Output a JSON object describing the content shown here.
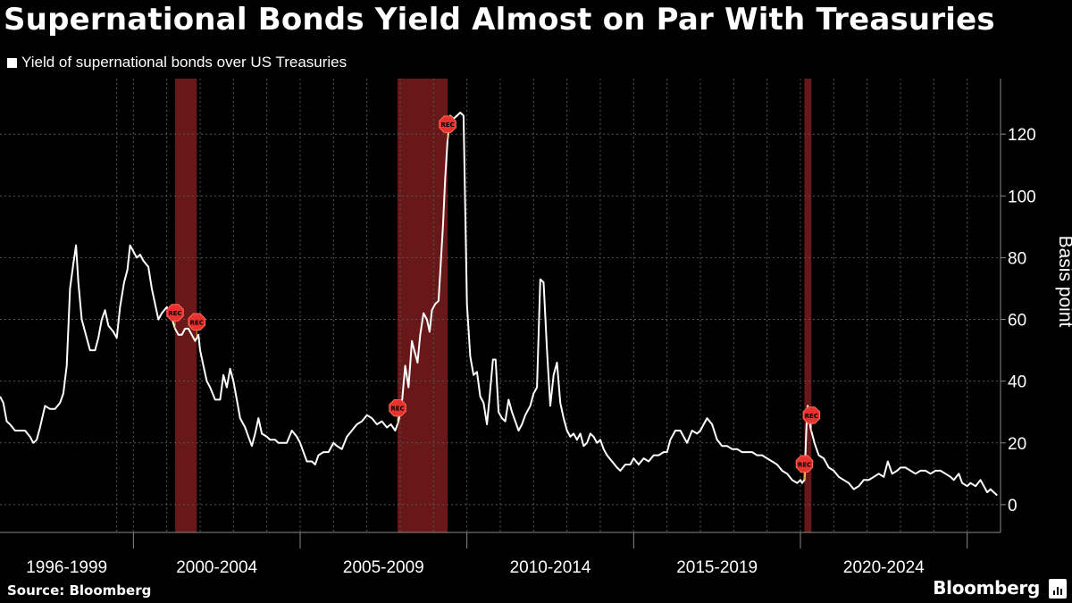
{
  "title": "Supernational Bonds Yield Almost on Par With Treasuries",
  "legend_label": "Yield of supernational bonds over US Treasuries",
  "source": "Source: Bloomberg",
  "brand": "Bloomberg",
  "colors": {
    "background": "#000000",
    "line": "#ffffff",
    "recession_band": "#7a1c1c",
    "recession_marker": "#e8322e",
    "grid": "#555555"
  },
  "chart_data": {
    "type": "line",
    "title": "Supernational Bonds Yield Almost on Par With Treasuries",
    "xlabel": "",
    "ylabel": "Basis point",
    "ylim": [
      -9,
      138
    ],
    "xlim": [
      1996.0,
      2026.0
    ],
    "yticks": [
      0,
      20,
      40,
      60,
      80,
      100,
      120
    ],
    "xtick_labels": [
      {
        "label": "1996-1999",
        "start": 1996.0,
        "end": 2000.0
      },
      {
        "label": "2000-2004",
        "start": 2000.0,
        "end": 2005.0
      },
      {
        "label": "2005-2009",
        "start": 2005.0,
        "end": 2010.0
      },
      {
        "label": "2010-2014",
        "start": 2010.0,
        "end": 2015.0
      },
      {
        "label": "2015-2019",
        "start": 2015.0,
        "end": 2020.0
      },
      {
        "label": "2020-2024",
        "start": 2020.0,
        "end": 2025.0
      }
    ],
    "vertical_gridlines": [
      1999.5,
      2000.0,
      2001.0,
      2002.0,
      2003.0,
      2004.0,
      2005.0,
      2006.0,
      2007.0,
      2008.0,
      2009.0,
      2010.0,
      2011.0,
      2012.0,
      2013.0,
      2014.0,
      2015.0,
      2016.0,
      2017.0,
      2018.0,
      2019.0,
      2020.0,
      2021.0,
      2022.0,
      2023.0,
      2024.0,
      2025.0
    ],
    "recessions": [
      {
        "start": 2001.25,
        "end": 2001.9,
        "label": "REC"
      },
      {
        "start": 2007.92,
        "end": 2009.42,
        "label": "REC"
      },
      {
        "start": 2020.12,
        "end": 2020.33,
        "label": "REC"
      }
    ],
    "series": [
      {
        "name": "",
        "points": [
          [
            1996.0,
            35
          ],
          [
            1996.1,
            33
          ],
          [
            1996.2,
            27
          ],
          [
            1996.3,
            26
          ],
          [
            1996.45,
            24
          ],
          [
            1996.6,
            24
          ],
          [
            1996.75,
            24
          ],
          [
            1996.9,
            22
          ],
          [
            1997.0,
            20
          ],
          [
            1997.1,
            21
          ],
          [
            1997.2,
            25
          ],
          [
            1997.35,
            32
          ],
          [
            1997.5,
            31
          ],
          [
            1997.65,
            31
          ],
          [
            1997.8,
            33
          ],
          [
            1997.9,
            36
          ],
          [
            1998.0,
            45
          ],
          [
            1998.1,
            70
          ],
          [
            1998.2,
            78
          ],
          [
            1998.28,
            84
          ],
          [
            1998.35,
            72
          ],
          [
            1998.45,
            60
          ],
          [
            1998.55,
            56
          ],
          [
            1998.7,
            50
          ],
          [
            1998.85,
            50
          ],
          [
            1998.95,
            54
          ],
          [
            1999.05,
            60
          ],
          [
            1999.15,
            63
          ],
          [
            1999.25,
            58
          ],
          [
            1999.4,
            56
          ],
          [
            1999.5,
            54
          ],
          [
            1999.6,
            64
          ],
          [
            1999.72,
            72
          ],
          [
            1999.82,
            76
          ],
          [
            1999.9,
            84
          ],
          [
            2000.0,
            82
          ],
          [
            2000.1,
            80
          ],
          [
            2000.2,
            81
          ],
          [
            2000.3,
            79
          ],
          [
            2000.45,
            77
          ],
          [
            2000.55,
            70
          ],
          [
            2000.65,
            65
          ],
          [
            2000.75,
            60
          ],
          [
            2000.85,
            62
          ],
          [
            2001.0,
            64
          ],
          [
            2001.1,
            62
          ],
          [
            2001.25,
            57
          ],
          [
            2001.35,
            55
          ],
          [
            2001.45,
            55
          ],
          [
            2001.55,
            57
          ],
          [
            2001.65,
            57
          ],
          [
            2001.75,
            55
          ],
          [
            2001.85,
            53
          ],
          [
            2001.95,
            55
          ],
          [
            2002.0,
            50
          ],
          [
            2002.1,
            45
          ],
          [
            2002.2,
            40
          ],
          [
            2002.3,
            38
          ],
          [
            2002.45,
            34
          ],
          [
            2002.6,
            34
          ],
          [
            2002.7,
            42
          ],
          [
            2002.8,
            38
          ],
          [
            2002.9,
            44
          ],
          [
            2003.0,
            40
          ],
          [
            2003.1,
            34
          ],
          [
            2003.2,
            28
          ],
          [
            2003.35,
            25
          ],
          [
            2003.45,
            22
          ],
          [
            2003.55,
            19
          ],
          [
            2003.65,
            23
          ],
          [
            2003.75,
            28
          ],
          [
            2003.85,
            23
          ],
          [
            2004.0,
            22
          ],
          [
            2004.1,
            21
          ],
          [
            2004.25,
            21
          ],
          [
            2004.35,
            20
          ],
          [
            2004.5,
            20
          ],
          [
            2004.6,
            20
          ],
          [
            2004.75,
            24
          ],
          [
            2004.9,
            22
          ],
          [
            2005.0,
            20
          ],
          [
            2005.1,
            17
          ],
          [
            2005.2,
            14
          ],
          [
            2005.35,
            14
          ],
          [
            2005.45,
            13
          ],
          [
            2005.55,
            16
          ],
          [
            2005.7,
            17
          ],
          [
            2005.85,
            17
          ],
          [
            2006.0,
            20
          ],
          [
            2006.1,
            19
          ],
          [
            2006.25,
            18
          ],
          [
            2006.4,
            22
          ],
          [
            2006.55,
            24
          ],
          [
            2006.7,
            26
          ],
          [
            2006.85,
            27
          ],
          [
            2007.0,
            29
          ],
          [
            2007.15,
            28
          ],
          [
            2007.3,
            26
          ],
          [
            2007.45,
            27
          ],
          [
            2007.6,
            25
          ],
          [
            2007.72,
            26
          ],
          [
            2007.85,
            24
          ],
          [
            2007.95,
            27
          ],
          [
            2008.05,
            33
          ],
          [
            2008.15,
            45
          ],
          [
            2008.25,
            38
          ],
          [
            2008.35,
            53
          ],
          [
            2008.42,
            50
          ],
          [
            2008.52,
            46
          ],
          [
            2008.6,
            55
          ],
          [
            2008.7,
            62
          ],
          [
            2008.8,
            60
          ],
          [
            2008.88,
            56
          ],
          [
            2008.95,
            63
          ],
          [
            2009.05,
            65
          ],
          [
            2009.15,
            66
          ],
          [
            2009.28,
            90
          ],
          [
            2009.35,
            106
          ],
          [
            2009.42,
            118
          ],
          [
            2009.5,
            126
          ],
          [
            2009.6,
            125
          ],
          [
            2009.7,
            126
          ],
          [
            2009.8,
            127
          ],
          [
            2009.9,
            126
          ],
          [
            2010.0,
            65
          ],
          [
            2010.1,
            48
          ],
          [
            2010.2,
            42
          ],
          [
            2010.3,
            43
          ],
          [
            2010.4,
            35
          ],
          [
            2010.5,
            33
          ],
          [
            2010.6,
            26
          ],
          [
            2010.68,
            35
          ],
          [
            2010.78,
            47
          ],
          [
            2010.86,
            47
          ],
          [
            2010.95,
            30
          ],
          [
            2011.05,
            28
          ],
          [
            2011.15,
            27
          ],
          [
            2011.25,
            34
          ],
          [
            2011.35,
            30
          ],
          [
            2011.45,
            27
          ],
          [
            2011.55,
            24
          ],
          [
            2011.65,
            26
          ],
          [
            2011.75,
            29
          ],
          [
            2011.9,
            32
          ],
          [
            2012.0,
            36
          ],
          [
            2012.1,
            38
          ],
          [
            2012.2,
            73
          ],
          [
            2012.3,
            72
          ],
          [
            2012.4,
            50
          ],
          [
            2012.5,
            32
          ],
          [
            2012.6,
            42
          ],
          [
            2012.7,
            46
          ],
          [
            2012.8,
            33
          ],
          [
            2012.9,
            28
          ],
          [
            2013.0,
            24
          ],
          [
            2013.1,
            22
          ],
          [
            2013.2,
            23
          ],
          [
            2013.3,
            21
          ],
          [
            2013.4,
            23
          ],
          [
            2013.5,
            19
          ],
          [
            2013.6,
            20
          ],
          [
            2013.7,
            23
          ],
          [
            2013.8,
            22
          ],
          [
            2013.9,
            20
          ],
          [
            2014.0,
            21
          ],
          [
            2014.1,
            18
          ],
          [
            2014.2,
            16
          ],
          [
            2014.35,
            14
          ],
          [
            2014.5,
            12
          ],
          [
            2014.6,
            11
          ],
          [
            2014.75,
            13
          ],
          [
            2014.9,
            13
          ],
          [
            2015.0,
            15
          ],
          [
            2015.15,
            13
          ],
          [
            2015.3,
            15
          ],
          [
            2015.45,
            14
          ],
          [
            2015.6,
            16
          ],
          [
            2015.75,
            16
          ],
          [
            2015.9,
            17
          ],
          [
            2016.0,
            17
          ],
          [
            2016.1,
            21
          ],
          [
            2016.25,
            24
          ],
          [
            2016.4,
            24
          ],
          [
            2016.5,
            22
          ],
          [
            2016.6,
            20
          ],
          [
            2016.75,
            24
          ],
          [
            2016.9,
            23
          ],
          [
            2017.0,
            24
          ],
          [
            2017.1,
            26
          ],
          [
            2017.2,
            28
          ],
          [
            2017.35,
            26
          ],
          [
            2017.5,
            21
          ],
          [
            2017.65,
            19
          ],
          [
            2017.8,
            19
          ],
          [
            2017.95,
            18
          ],
          [
            2018.1,
            18
          ],
          [
            2018.25,
            17
          ],
          [
            2018.4,
            17
          ],
          [
            2018.55,
            17
          ],
          [
            2018.7,
            16
          ],
          [
            2018.85,
            16
          ],
          [
            2019.0,
            15
          ],
          [
            2019.15,
            14
          ],
          [
            2019.3,
            13
          ],
          [
            2019.45,
            11
          ],
          [
            2019.6,
            10
          ],
          [
            2019.75,
            8
          ],
          [
            2019.9,
            7
          ],
          [
            2020.0,
            8
          ],
          [
            2020.05,
            7
          ],
          [
            2020.12,
            8
          ],
          [
            2020.18,
            25
          ],
          [
            2020.22,
            32
          ],
          [
            2020.3,
            25
          ],
          [
            2020.42,
            20
          ],
          [
            2020.55,
            16
          ],
          [
            2020.7,
            15
          ],
          [
            2020.85,
            12
          ],
          [
            2021.0,
            11
          ],
          [
            2021.15,
            9
          ],
          [
            2021.3,
            8
          ],
          [
            2021.45,
            7
          ],
          [
            2021.6,
            5
          ],
          [
            2021.75,
            6
          ],
          [
            2021.9,
            8
          ],
          [
            2022.05,
            8
          ],
          [
            2022.2,
            9
          ],
          [
            2022.35,
            10
          ],
          [
            2022.5,
            9
          ],
          [
            2022.62,
            14
          ],
          [
            2022.75,
            10
          ],
          [
            2022.9,
            11
          ],
          [
            2023.0,
            12
          ],
          [
            2023.15,
            12
          ],
          [
            2023.3,
            11
          ],
          [
            2023.45,
            10
          ],
          [
            2023.6,
            11
          ],
          [
            2023.75,
            11
          ],
          [
            2023.9,
            10
          ],
          [
            2024.05,
            11
          ],
          [
            2024.2,
            11
          ],
          [
            2024.35,
            10
          ],
          [
            2024.5,
            9
          ],
          [
            2024.6,
            8
          ],
          [
            2024.75,
            10
          ],
          [
            2024.85,
            7
          ],
          [
            2025.0,
            6
          ],
          [
            2025.1,
            7
          ],
          [
            2025.25,
            6
          ],
          [
            2025.4,
            8
          ],
          [
            2025.5,
            6
          ],
          [
            2025.6,
            4
          ],
          [
            2025.7,
            5
          ],
          [
            2025.8,
            4
          ],
          [
            2025.9,
            3
          ]
        ]
      }
    ]
  }
}
